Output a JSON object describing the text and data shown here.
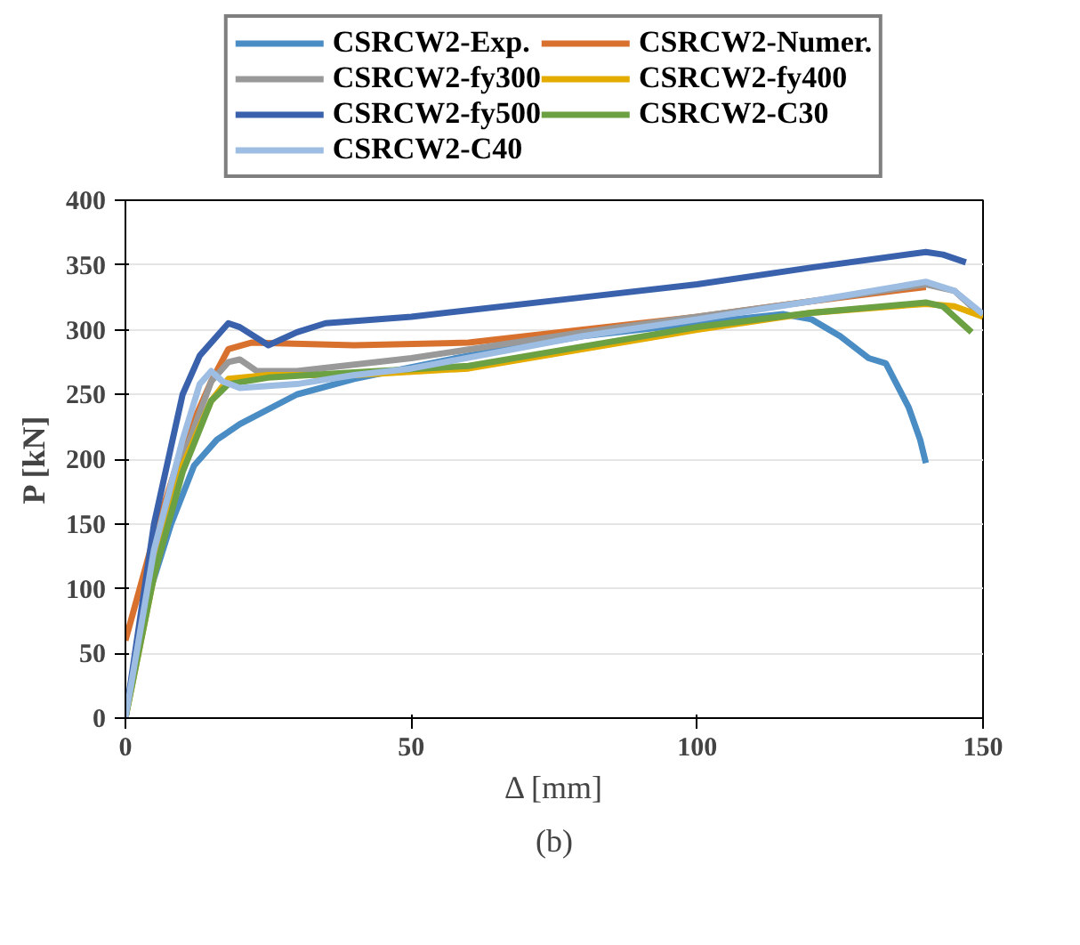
{
  "chart_data": {
    "type": "line",
    "xlabel": "Δ [mm]",
    "ylabel": "P [kN]",
    "annotations": [
      "(b)"
    ],
    "xlim": [
      0,
      150
    ],
    "xticks": [
      0,
      50,
      100,
      150
    ],
    "ylim": [
      0,
      400
    ],
    "yticks": [
      0,
      50,
      100,
      150,
      200,
      250,
      300,
      350,
      400
    ],
    "grid": "y",
    "legend": "top",
    "marker": "none",
    "line_style": "solid",
    "series": [
      {
        "name": "CSRCW2-Exp.",
        "color": "#4a8cc4",
        "x": [
          0,
          3,
          8,
          12,
          16,
          20,
          30,
          40,
          60,
          80,
          100,
          115,
          120,
          125,
          130,
          133,
          137,
          139,
          140
        ],
        "values": [
          0,
          80,
          150,
          195,
          215,
          227,
          250,
          262,
          280,
          295,
          305,
          312,
          308,
          295,
          278,
          274,
          240,
          215,
          197
        ]
      },
      {
        "name": "CSRCW2-Numer.",
        "color": "#d9712e",
        "x": [
          0,
          5,
          10,
          15,
          18,
          22,
          40,
          60,
          80,
          100,
          120,
          140
        ],
        "values": [
          60,
          140,
          210,
          260,
          285,
          290,
          288,
          290,
          300,
          310,
          322,
          333
        ]
      },
      {
        "name": "CSRCW2-fy300",
        "color": "#999999",
        "x": [
          0,
          5,
          10,
          15,
          18,
          20,
          23,
          30,
          50,
          80,
          100,
          120,
          140,
          145,
          150
        ],
        "values": [
          0,
          120,
          200,
          260,
          275,
          277,
          268,
          268,
          278,
          298,
          310,
          322,
          335,
          330,
          310
        ]
      },
      {
        "name": "CSRCW2-fy400",
        "color": "#e5ac00",
        "x": [
          0,
          5,
          10,
          15,
          18,
          25,
          40,
          60,
          80,
          100,
          120,
          140,
          145,
          150
        ],
        "values": [
          0,
          110,
          195,
          245,
          262,
          265,
          265,
          270,
          285,
          300,
          313,
          320,
          318,
          310
        ]
      },
      {
        "name": "CSRCW2-fy500",
        "color": "#3a62ac",
        "x": [
          0,
          5,
          10,
          13,
          18,
          20,
          25,
          30,
          35,
          50,
          80,
          100,
          120,
          140,
          143,
          147
        ],
        "values": [
          0,
          150,
          250,
          280,
          305,
          302,
          288,
          298,
          305,
          310,
          325,
          335,
          348,
          360,
          358,
          352
        ]
      },
      {
        "name": "CSRCW2-C30",
        "color": "#6ba043",
        "x": [
          0,
          5,
          10,
          15,
          18,
          25,
          40,
          60,
          80,
          100,
          120,
          140,
          143,
          148
        ],
        "values": [
          0,
          110,
          190,
          245,
          258,
          263,
          267,
          272,
          287,
          302,
          313,
          321,
          318,
          298
        ]
      },
      {
        "name": "CSRCW2-C40",
        "color": "#9ebde3",
        "x": [
          0,
          5,
          10,
          13,
          15,
          17,
          20,
          30,
          40,
          50,
          80,
          100,
          120,
          140,
          145,
          150
        ],
        "values": [
          0,
          130,
          215,
          258,
          268,
          260,
          255,
          258,
          265,
          270,
          295,
          308,
          322,
          337,
          330,
          312
        ]
      }
    ]
  }
}
